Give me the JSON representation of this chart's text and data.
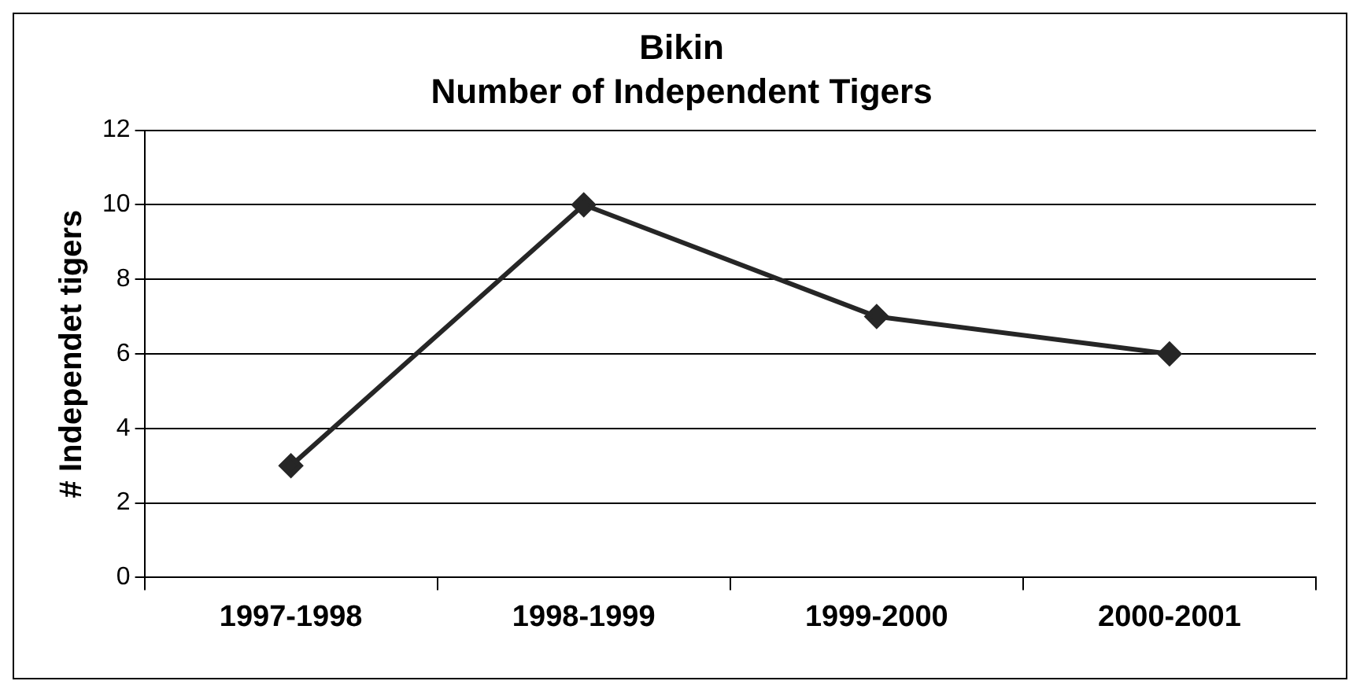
{
  "chart_data": {
    "type": "line",
    "title": "Bikin",
    "subtitle": "Number of Independent Tigers",
    "ylabel": "# Independet tigers",
    "categories": [
      "1997-1998",
      "1998-1999",
      "1999-2000",
      "2000-2001"
    ],
    "series": [
      {
        "color": "#262626",
        "values": [
          3,
          10,
          7,
          6
        ]
      }
    ],
    "ylim": [
      0,
      12
    ],
    "yticks": [
      0,
      2,
      4,
      6,
      8,
      10,
      12
    ],
    "grid": "y",
    "legend": false,
    "marker": "diamond",
    "line_style": "solid"
  }
}
